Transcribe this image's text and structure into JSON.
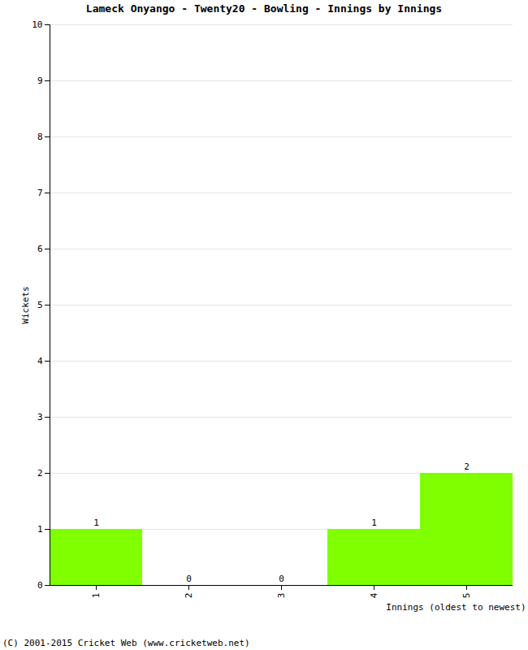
{
  "chart_data": {
    "type": "bar",
    "title": "Lameck Onyango - Twenty20 - Bowling - Innings by Innings",
    "x_label": "Innings (oldest to newest)",
    "y_label": "Wickets",
    "caption": "(C) 2001-2015 Cricket Web (www.cricketweb.net)",
    "categories": [
      "1",
      "2",
      "3",
      "4",
      "5"
    ],
    "values": [
      1,
      0,
      0,
      1,
      2
    ],
    "color": "#80ff00",
    "ylim": [
      0,
      10
    ],
    "yticks": [
      0,
      1,
      2,
      3,
      4,
      5,
      6,
      7,
      8,
      9,
      10
    ],
    "grid": true,
    "data_labels": true
  }
}
